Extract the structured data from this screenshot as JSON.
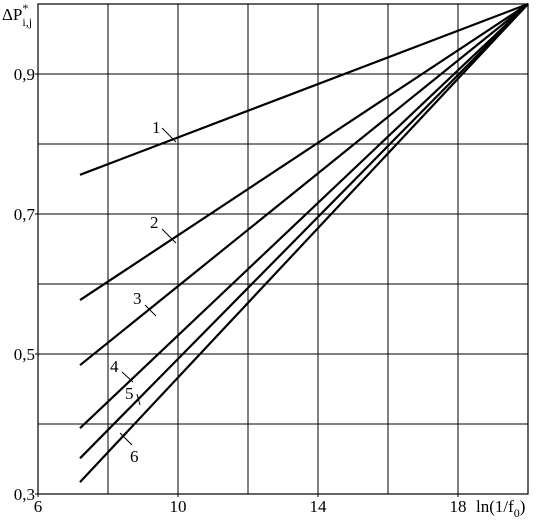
{
  "chart_data": {
    "type": "line",
    "ylabel": {
      "main": "ΔP",
      "sup": "*",
      "sub": "i,j"
    },
    "xlabel": {
      "main": "ln(1/f",
      "sub": "0",
      "end": ")"
    },
    "xlim": [
      6,
      20
    ],
    "ylim": [
      0.3,
      1.0
    ],
    "xticks": [
      6,
      10,
      14,
      18
    ],
    "yticks": [
      {
        "value": 0.3,
        "label": "0,3"
      },
      {
        "value": 0.5,
        "label": "0,5"
      },
      {
        "value": 0.7,
        "label": "0,7"
      },
      {
        "value": 0.9,
        "label": "0,9"
      }
    ],
    "xgrid": [
      8,
      10,
      12,
      14,
      16,
      18
    ],
    "ygrid": [
      0.4,
      0.5,
      0.6,
      0.7,
      0.8,
      0.9
    ],
    "grid": true,
    "series": [
      {
        "name": "1",
        "color": "#000000",
        "x": [
          7.2,
          20
        ],
        "values": [
          0.756,
          1.0
        ]
      },
      {
        "name": "2",
        "color": "#000000",
        "x": [
          7.2,
          20
        ],
        "values": [
          0.577,
          1.0
        ]
      },
      {
        "name": "3",
        "color": "#000000",
        "x": [
          7.2,
          20
        ],
        "values": [
          0.484,
          1.0
        ]
      },
      {
        "name": "4",
        "color": "#000000",
        "x": [
          7.2,
          20
        ],
        "values": [
          0.394,
          1.0
        ]
      },
      {
        "name": "5",
        "color": "#000000",
        "x": [
          7.2,
          20
        ],
        "values": [
          0.351,
          1.0
        ]
      },
      {
        "name": "6",
        "color": "#000000",
        "x": [
          7.2,
          20
        ],
        "values": [
          0.317,
          1.0
        ]
      }
    ]
  }
}
